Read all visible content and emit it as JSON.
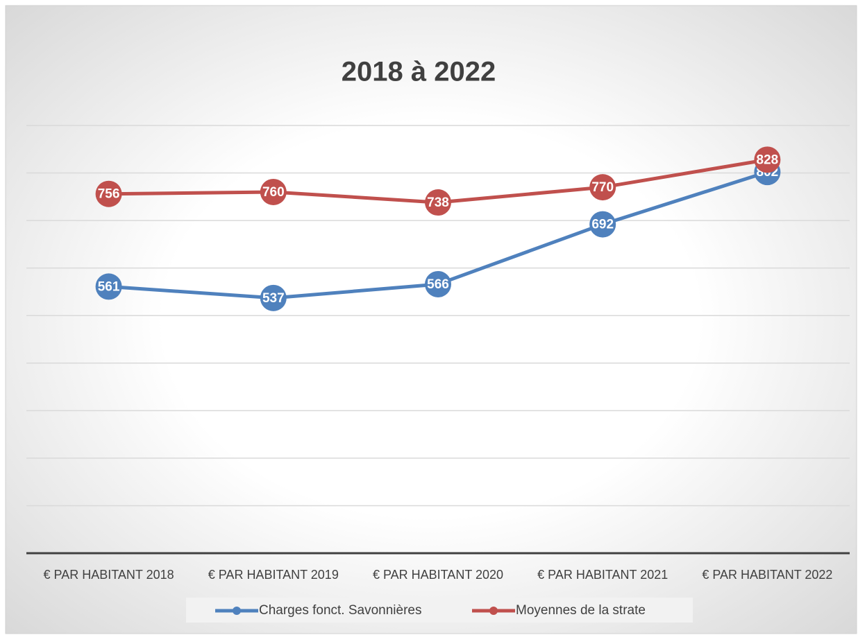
{
  "chart_data": {
    "type": "line",
    "title": "2018 à 2022",
    "categories": [
      "€ PAR HABITANT 2018",
      "€ PAR HABITANT 2019",
      "€ PAR HABITANT 2020",
      "€ PAR HABITANT 2021",
      "€ PAR HABITANT 2022"
    ],
    "series": [
      {
        "name": "Charges fonct. Savonnières",
        "color": "#4f81bd",
        "values": [
          561,
          537,
          566,
          692,
          802
        ]
      },
      {
        "name": "Moyennes de la strate",
        "color": "#c0504d",
        "values": [
          756,
          760,
          738,
          770,
          828
        ]
      }
    ],
    "ylim": [
      0,
      900
    ],
    "yticks": [
      0,
      100,
      200,
      300,
      400,
      500,
      600,
      700,
      800,
      900
    ],
    "grid": true
  }
}
